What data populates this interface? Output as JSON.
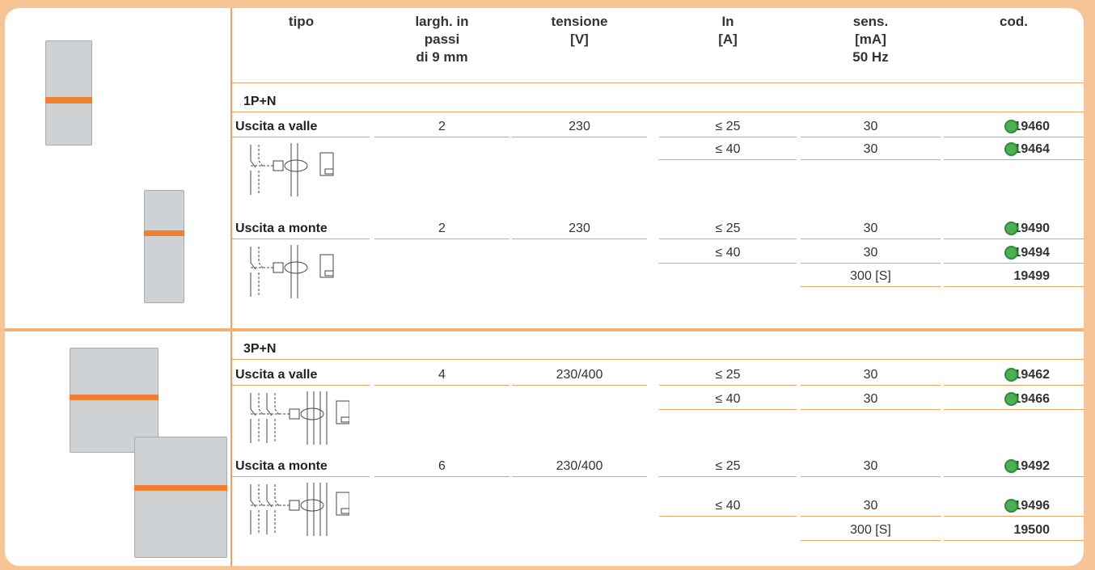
{
  "header": {
    "columns": [
      [
        "tipo"
      ],
      [
        "largh. in",
        "passi",
        "di 9 mm"
      ],
      [
        "tensione",
        "[V]"
      ],
      [
        "In",
        "[A]"
      ],
      [
        "sens.",
        "[mA]",
        "50 Hz"
      ],
      [
        "cod."
      ]
    ]
  },
  "sections": [
    {
      "title": "1P+N",
      "groups": [
        {
          "label": "Uscita a valle",
          "rows": [
            {
              "passi": "2",
              "tensione": "230",
              "In": "≤ 25",
              "sens": "30",
              "cod": "19460",
              "eco": true
            },
            {
              "In": "≤ 40",
              "sens": "30",
              "cod": "19464",
              "eco": true
            }
          ]
        },
        {
          "label": "Uscita a monte",
          "rows": [
            {
              "passi": "2",
              "tensione": "230",
              "In": "≤ 25",
              "sens": "30",
              "cod": "19490",
              "eco": true
            },
            {
              "In": "≤ 40",
              "sens": "30",
              "cod": "19494",
              "eco": true
            },
            {
              "sens": "300 [S]",
              "cod": "19499",
              "eco": false
            }
          ]
        }
      ]
    },
    {
      "title": "3P+N",
      "groups": [
        {
          "label": "Uscita a valle",
          "rows": [
            {
              "passi": "4",
              "tensione": "230/400",
              "In": "≤ 25",
              "sens": "30",
              "cod": "19462",
              "eco": true
            },
            {
              "In": "≤ 40",
              "sens": "30",
              "cod": "19466",
              "eco": true
            }
          ]
        },
        {
          "label": "Uscita a monte",
          "rows": [
            {
              "passi": "6",
              "tensione": "230/400",
              "In": "≤ 25",
              "sens": "30",
              "cod": "19492",
              "eco": true
            },
            {
              "In": "≤ 40",
              "sens": "30",
              "cod": "19496",
              "eco": true
            },
            {
              "sens": "300 [S]",
              "cod": "19500",
              "eco": false
            }
          ]
        }
      ]
    }
  ]
}
